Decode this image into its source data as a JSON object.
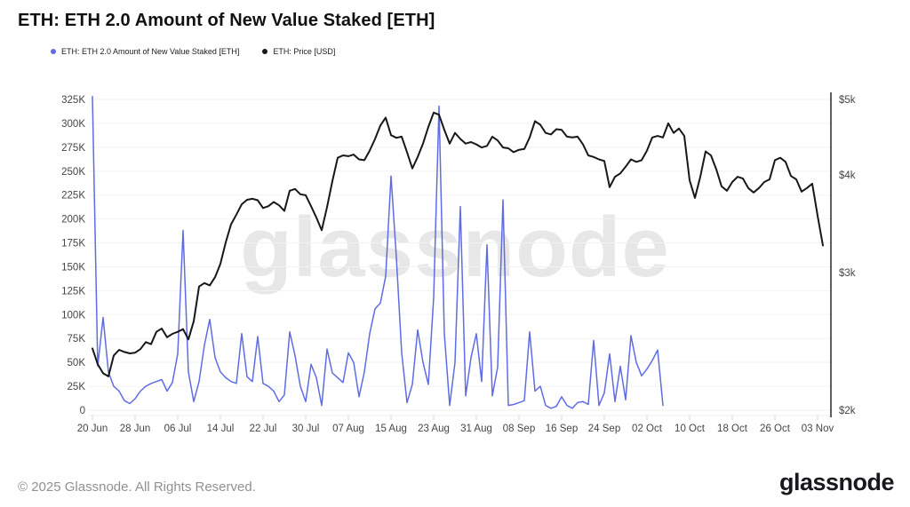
{
  "title": "ETH: ETH 2.0 Amount of New Value Staked [ETH]",
  "legend": [
    {
      "label": "ETH: ETH 2.0 Amount of New Value Staked [ETH]",
      "color": "#5f6ce4"
    },
    {
      "label": "ETH: Price [USD]",
      "color": "#17181b"
    }
  ],
  "watermark": "glassnode",
  "footer": {
    "copyright": "© 2025 Glassnode. All Rights Reserved.",
    "brand": "glassnode"
  },
  "colors": {
    "staked_line": "#5f6ce4",
    "price_line": "#17181b",
    "gridline": "#f2f2f2",
    "axis_border": "#ececec",
    "right_axis_line": "#26282b",
    "axis_text": "#444648",
    "watermark": "#e4e4e4"
  },
  "chart_data": {
    "type": "line",
    "title": "ETH: ETH 2.0 Amount of New Value Staked [ETH]",
    "sampling": "daily points, x tick labels every 8 days",
    "x_tick_labels": [
      "20 Jun",
      "28 Jun",
      "06 Jul",
      "14 Jul",
      "22 Jul",
      "30 Jul",
      "07 Aug",
      "15 Aug",
      "23 Aug",
      "31 Aug",
      "08 Sep",
      "16 Sep",
      "24 Sep",
      "02 Oct",
      "10 Oct",
      "18 Oct",
      "26 Oct",
      "03 Nov"
    ],
    "left_axis": {
      "scale": "linear",
      "min": 0,
      "max": 325000,
      "unit": "ETH",
      "ticks": [
        "0",
        "25K",
        "50K",
        "75K",
        "100K",
        "125K",
        "150K",
        "175K",
        "200K",
        "225K",
        "250K",
        "275K",
        "300K",
        "325K"
      ]
    },
    "right_axis": {
      "scale": "log",
      "min": 2000,
      "max": 5000,
      "unit": "USD",
      "ticks": [
        "$2k",
        "$3k",
        "$4k",
        "$5k"
      ]
    },
    "legend_position": "top-left",
    "grid": "horizontal only",
    "series": [
      {
        "name": "ETH: ETH 2.0 Amount of New Value Staked [ETH]",
        "axis": "left",
        "color": "#5f6ce4",
        "unit": "thousand ETH",
        "start_day": 0,
        "values": [
          328,
          46,
          97,
          40,
          25,
          20,
          10,
          7,
          12,
          20,
          25,
          28,
          30,
          32,
          20,
          29,
          59,
          188,
          40,
          9,
          30,
          68,
          95,
          55,
          40,
          34,
          30,
          28,
          80,
          35,
          30,
          77,
          28,
          25,
          20,
          9,
          16,
          82,
          57,
          25,
          9,
          48,
          34,
          5,
          64,
          39,
          34,
          29,
          60,
          50,
          14,
          40,
          80,
          106,
          112,
          140,
          245,
          160,
          60,
          8,
          27,
          84,
          50,
          27,
          118,
          318,
          80,
          5,
          50,
          213,
          15,
          55,
          80,
          30,
          173,
          15,
          45,
          220,
          5,
          6,
          8,
          10,
          82,
          20,
          25,
          5,
          2,
          4,
          14,
          5,
          2,
          8,
          9,
          6,
          73,
          5,
          18,
          59,
          9,
          46,
          11,
          78,
          50,
          36,
          43,
          52,
          63,
          5
        ]
      },
      {
        "name": "ETH: Price [USD]",
        "axis": "right",
        "color": "#17181b",
        "unit": "USD",
        "start_day": 0,
        "values": [
          2400,
          2290,
          2230,
          2210,
          2350,
          2390,
          2375,
          2365,
          2370,
          2395,
          2445,
          2430,
          2520,
          2545,
          2480,
          2505,
          2520,
          2540,
          2465,
          2600,
          2880,
          2910,
          2890,
          2960,
          3080,
          3280,
          3460,
          3560,
          3670,
          3720,
          3730,
          3715,
          3630,
          3650,
          3695,
          3660,
          3600,
          3820,
          3840,
          3780,
          3770,
          3650,
          3530,
          3400,
          3640,
          3930,
          4210,
          4240,
          4230,
          4250,
          4190,
          4180,
          4300,
          4450,
          4630,
          4740,
          4500,
          4465,
          4480,
          4280,
          4080,
          4220,
          4390,
          4610,
          4810,
          4780,
          4570,
          4390,
          4530,
          4450,
          4390,
          4410,
          4380,
          4340,
          4360,
          4480,
          4430,
          4340,
          4330,
          4280,
          4310,
          4320,
          4470,
          4690,
          4640,
          4530,
          4510,
          4580,
          4570,
          4480,
          4470,
          4480,
          4380,
          4240,
          4220,
          4190,
          4170,
          3860,
          3980,
          4020,
          4100,
          4190,
          4160,
          4180,
          4300,
          4470,
          4490,
          4470,
          4660,
          4530,
          4590,
          4490,
          3940,
          3740,
          3980,
          4290,
          4240,
          4070,
          3870,
          3820,
          3920,
          3980,
          3960,
          3850,
          3800,
          3850,
          3920,
          3950,
          4180,
          4210,
          4160,
          3990,
          3950,
          3810,
          3850,
          3900,
          3550,
          3250
        ]
      }
    ]
  }
}
